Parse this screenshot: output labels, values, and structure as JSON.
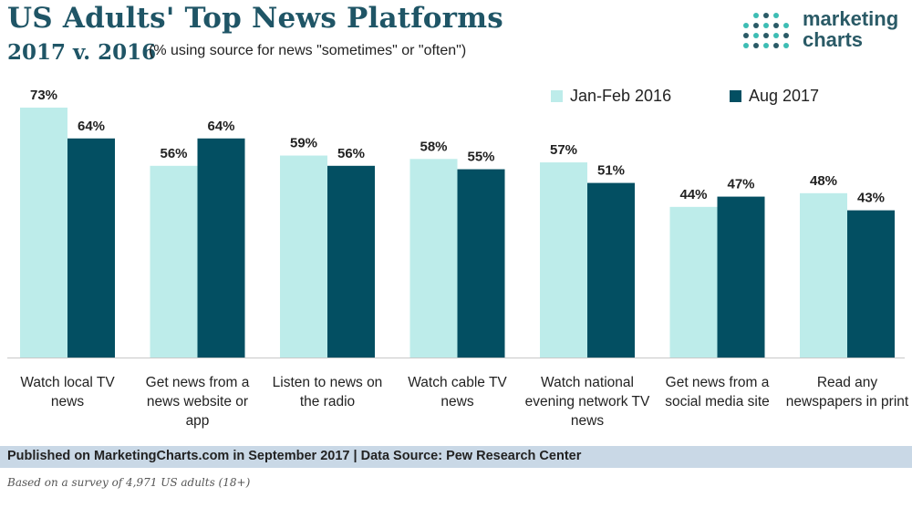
{
  "header": {
    "title": "US Adults' Top News Platforms",
    "subtitle": "2017 v. 2016",
    "note": "(% using source for news \"sometimes\" or \"often\")"
  },
  "logo": {
    "line1": "marketing",
    "line2": "charts"
  },
  "colors": {
    "series_2016": "#bdecea",
    "series_2017": "#034f62",
    "title": "#1f5566",
    "footer_bar": "#c9d8e6"
  },
  "chart_data": {
    "type": "bar",
    "categories": [
      "Watch local TV news",
      "Get news from a news website or app",
      "Listen to news on the radio",
      "Watch cable TV news",
      "Watch national evening network TV news",
      "Get news from a social media site",
      "Read any newspapers in print"
    ],
    "series": [
      {
        "name": "Jan-Feb 2016",
        "values": [
          73,
          56,
          59,
          58,
          57,
          44,
          48
        ]
      },
      {
        "name": "Aug 2017",
        "values": [
          64,
          64,
          56,
          55,
          51,
          47,
          43
        ]
      }
    ],
    "value_suffix": "%",
    "ylim": [
      0,
      73
    ],
    "legend_position": "top-right",
    "grid": false
  },
  "legend": [
    {
      "label": "Jan-Feb 2016"
    },
    {
      "label": "Aug 2017"
    }
  ],
  "footer": {
    "published": "Published on MarketingCharts.com in September 2017 | Data Source: Pew Research Center",
    "footnote": "Based on a survey of 4,971 US adults (18+)"
  }
}
